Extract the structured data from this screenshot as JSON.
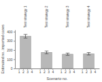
{
  "chart_data": {
    "type": "bar",
    "categories": [
      "Test strategy 1",
      "Test strategy 2",
      "Test strategy 3",
      "Test strategy 4"
    ],
    "values": [
      350,
      175,
      155,
      160
    ],
    "errors_lo": [
      20,
      15,
      12,
      13
    ],
    "errors_hi": [
      20,
      15,
      12,
      13
    ],
    "scenario_labels": [
      "1",
      "2",
      "3",
      "4"
    ],
    "color": "#b8b8b8",
    "xlabel": "Scenario no.",
    "ylabel": "Estimated no. imported cases",
    "ylim": [
      0,
      420
    ],
    "yticks": [
      0,
      100,
      200,
      300,
      400
    ],
    "grid": false
  }
}
